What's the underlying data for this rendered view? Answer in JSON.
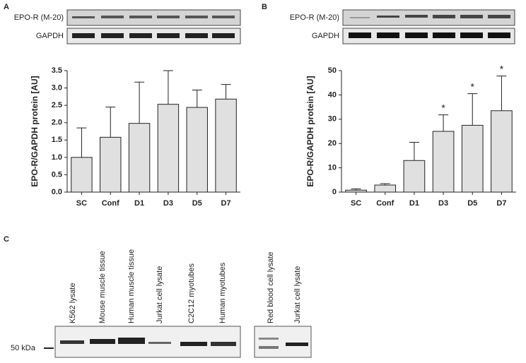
{
  "chart_data": [
    {
      "type": "bar",
      "panel": "A",
      "blot_labels": [
        "EPO-R (M-20)",
        "GAPDH"
      ],
      "ylabel": "EPO-R/GAPDH protein [AU]",
      "categories": [
        "SC",
        "Conf",
        "D1",
        "D3",
        "D5",
        "D7"
      ],
      "values": [
        1.0,
        1.58,
        1.98,
        2.53,
        2.44,
        2.68
      ],
      "errors": [
        0.85,
        0.87,
        1.19,
        0.97,
        0.5,
        0.42
      ],
      "color": "#e0e0e0",
      "ylim": [
        0,
        3.5
      ],
      "yticks": [
        {
          "value": 0,
          "label": "0.0"
        },
        0.5,
        {
          "value": 1,
          "label": "1.0"
        },
        1.5,
        {
          "value": 2,
          "label": "2.0"
        },
        2.5,
        {
          "value": 3,
          "label": "3.0"
        },
        3.5
      ]
    },
    {
      "type": "bar",
      "panel": "B",
      "blot_labels": [
        "EPO-R (M-20)",
        "GAPDH"
      ],
      "ylabel": "EPO-R/GAPDH protein [AU]",
      "categories": [
        "SC",
        "Conf",
        "D1",
        "D3",
        "D5",
        "D7"
      ],
      "values": [
        0.8,
        2.9,
        13,
        25,
        27.5,
        33.5
      ],
      "errors": [
        0.5,
        0.6,
        7.5,
        6.8,
        13,
        14.3
      ],
      "significance": [
        null,
        null,
        null,
        "*",
        "*",
        "*"
      ],
      "color": "#e0e0e0",
      "ylim": [
        0,
        50
      ],
      "yticks": [
        0,
        10,
        20,
        30,
        40,
        50
      ]
    }
  ],
  "panel_c": {
    "panel": "C",
    "marker": "50 kDa",
    "lanes": [
      "K562  lysate",
      "Mouse muscle tissue",
      "Human muscle tissue",
      "Jurkat cell lysate",
      "C2C12 myotubes",
      "Human myotubes",
      "Red blood cell lysate",
      "Jurkat cell lysate"
    ]
  }
}
